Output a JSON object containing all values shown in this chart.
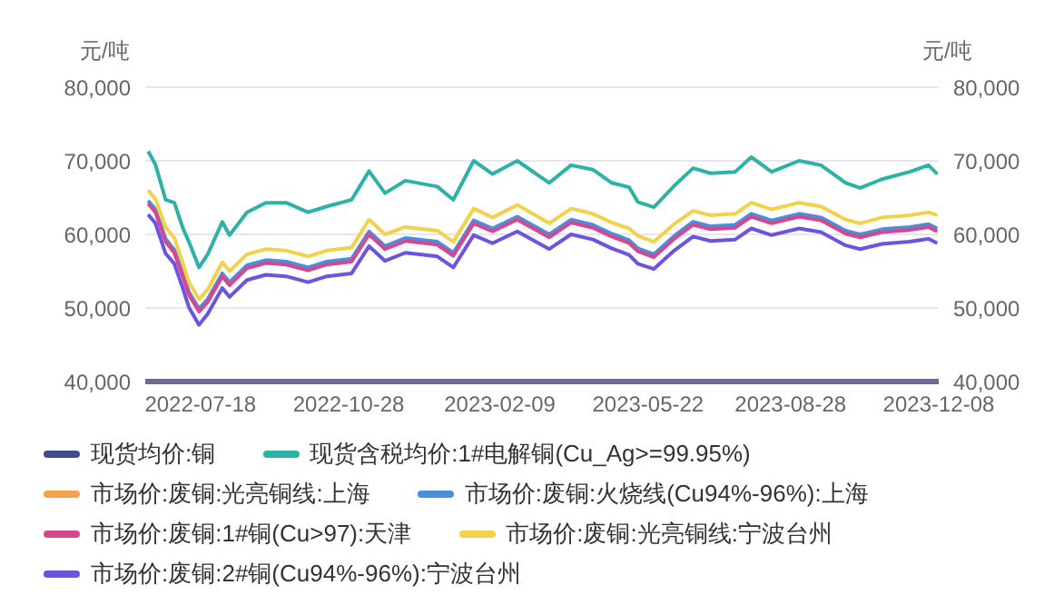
{
  "chart_data": {
    "type": "line",
    "ylabel": "元/吨",
    "y2label": "元/吨",
    "x": [
      "2022-06-12",
      "2022-06-17",
      "2022-06-24",
      "2022-06-30",
      "2022-07-06",
      "2022-07-10",
      "2022-07-17",
      "2022-07-23",
      "2022-08-02",
      "2022-08-07",
      "2022-08-19",
      "2022-09-01",
      "2022-09-15",
      "2022-09-30",
      "2022-10-13",
      "2022-10-30",
      "2022-11-11",
      "2022-11-22",
      "2022-12-06",
      "2022-12-28",
      "2023-01-08",
      "2023-01-22",
      "2023-02-04",
      "2023-02-21",
      "2023-03-15",
      "2023-03-30",
      "2023-04-14",
      "2023-04-27",
      "2023-05-09",
      "2023-05-15",
      "2023-05-26",
      "2023-06-09",
      "2023-06-22",
      "2023-07-04",
      "2023-07-21",
      "2023-08-01",
      "2023-08-15",
      "2023-09-03",
      "2023-09-18",
      "2023-10-05",
      "2023-10-15",
      "2023-10-30",
      "2023-11-18",
      "2023-12-01",
      "2023-12-07"
    ],
    "xlim": [
      "2022-06-10",
      "2023-12-08"
    ],
    "xticks": [
      "2022-07-18",
      "2022-10-28",
      "2023-02-09",
      "2023-05-22",
      "2023-08-28",
      "2023-12-08"
    ],
    "ylim": [
      40000,
      80000
    ],
    "yticks": [
      {
        "value": 40000,
        "label": "40,000"
      },
      {
        "value": 50000,
        "label": "50,000"
      },
      {
        "value": 60000,
        "label": "60,000"
      },
      {
        "value": 70000,
        "label": "70,000"
      },
      {
        "value": 80000,
        "label": "80,000"
      }
    ],
    "y2lim": [
      40000,
      80000
    ],
    "y2ticks": [
      {
        "value": 40000,
        "label": "40,000"
      },
      {
        "value": 50000,
        "label": "50,000"
      },
      {
        "value": 60000,
        "label": "60,000"
      },
      {
        "value": 70000,
        "label": "70,000"
      },
      {
        "value": 80000,
        "label": "80,000"
      }
    ],
    "grid": "y",
    "legend": "bottom",
    "marker": "none",
    "line_style": "solid",
    "series": [
      {
        "name": "现货均价:铜",
        "color": "#3f4d8f",
        "values": [
          null,
          null,
          null,
          null,
          null,
          null,
          null,
          null,
          null,
          null,
          null,
          null,
          null,
          null,
          null,
          null,
          null,
          null,
          null,
          null,
          null,
          null,
          null,
          null,
          null,
          null,
          null,
          null,
          null,
          null,
          null,
          null,
          null,
          null,
          null,
          null,
          null,
          null,
          null,
          null,
          null,
          null,
          null,
          null,
          null
        ]
      },
      {
        "name": "现货含税均价:1#电解铜(Cu_Ag>=99.95%)",
        "color": "#2ab3a6",
        "values": [
          71300,
          69500,
          64700,
          64300,
          60800,
          59000,
          55500,
          57300,
          61700,
          59900,
          63000,
          64300,
          64300,
          63000,
          63800,
          64700,
          68600,
          65600,
          67300,
          66500,
          64700,
          70000,
          68200,
          70000,
          67000,
          69400,
          68800,
          67000,
          66400,
          64400,
          63700,
          66600,
          69000,
          68300,
          68500,
          70500,
          68500,
          70000,
          69400,
          67000,
          66300,
          67500,
          68500,
          69400,
          68200
        ]
      },
      {
        "name": "市场价:废铜:光亮铜线:上海",
        "color": "#f5a24b",
        "values": [
          null,
          null,
          null,
          null,
          null,
          null,
          null,
          null,
          null,
          null,
          null,
          null,
          null,
          null,
          null,
          null,
          null,
          null,
          null,
          null,
          null,
          null,
          null,
          null,
          null,
          null,
          null,
          null,
          null,
          null,
          null,
          null,
          null,
          null,
          null,
          null,
          null,
          null,
          null,
          null,
          null,
          null,
          null,
          null,
          null
        ]
      },
      {
        "name": "市场价:废铜:火烧线(Cu94%-96%):上海",
        "color": "#4a8fdc",
        "values": [
          64600,
          63400,
          59400,
          57900,
          54600,
          52200,
          49900,
          51200,
          54700,
          53500,
          55800,
          56500,
          56300,
          55500,
          56300,
          56700,
          60400,
          58400,
          59500,
          59000,
          57500,
          61900,
          60800,
          62400,
          60000,
          62000,
          61300,
          60100,
          59200,
          58100,
          57300,
          59800,
          61700,
          61100,
          61300,
          62800,
          61900,
          62800,
          62300,
          60500,
          60000,
          60700,
          61000,
          61400,
          60800
        ]
      },
      {
        "name": "市场价:废铜:1#铜(Cu>97):天津",
        "color": "#d6478f",
        "values": [
          64200,
          63000,
          59000,
          57500,
          54200,
          51800,
          49500,
          50800,
          54300,
          53100,
          55400,
          56100,
          55900,
          55100,
          55900,
          56300,
          60000,
          58000,
          59100,
          58600,
          57100,
          61500,
          60400,
          62000,
          59600,
          61600,
          60900,
          59700,
          58800,
          57700,
          56900,
          59400,
          61300,
          60700,
          60900,
          62400,
          61500,
          62400,
          61900,
          60100,
          59600,
          60300,
          60600,
          61000,
          60400
        ]
      },
      {
        "name": "市场价:废铜:光亮铜线:宁波台州",
        "color": "#f2d14b",
        "values": [
          66000,
          64800,
          61000,
          59500,
          56000,
          53500,
          51200,
          52500,
          56200,
          55000,
          57300,
          58000,
          57800,
          57000,
          57800,
          58200,
          62000,
          60000,
          61000,
          60500,
          59000,
          63500,
          62300,
          64000,
          61500,
          63500,
          62800,
          61600,
          60800,
          59800,
          59000,
          61400,
          63200,
          62600,
          62800,
          64300,
          63400,
          64300,
          63800,
          62000,
          61500,
          62300,
          62600,
          63000,
          62600
        ]
      },
      {
        "name": "市场价:废铜:2#铜(Cu94%-96%):宁波台州",
        "color": "#6b54e0",
        "values": [
          62700,
          61500,
          57400,
          56000,
          52600,
          50100,
          47700,
          49200,
          52700,
          51500,
          53800,
          54500,
          54300,
          53500,
          54300,
          54700,
          58400,
          56400,
          57500,
          57000,
          55500,
          59900,
          58800,
          60400,
          58000,
          60000,
          59300,
          58100,
          57200,
          56000,
          55300,
          57800,
          59700,
          59100,
          59300,
          60800,
          59900,
          60800,
          60300,
          58500,
          58000,
          58700,
          59000,
          59400,
          58800
        ]
      }
    ]
  }
}
